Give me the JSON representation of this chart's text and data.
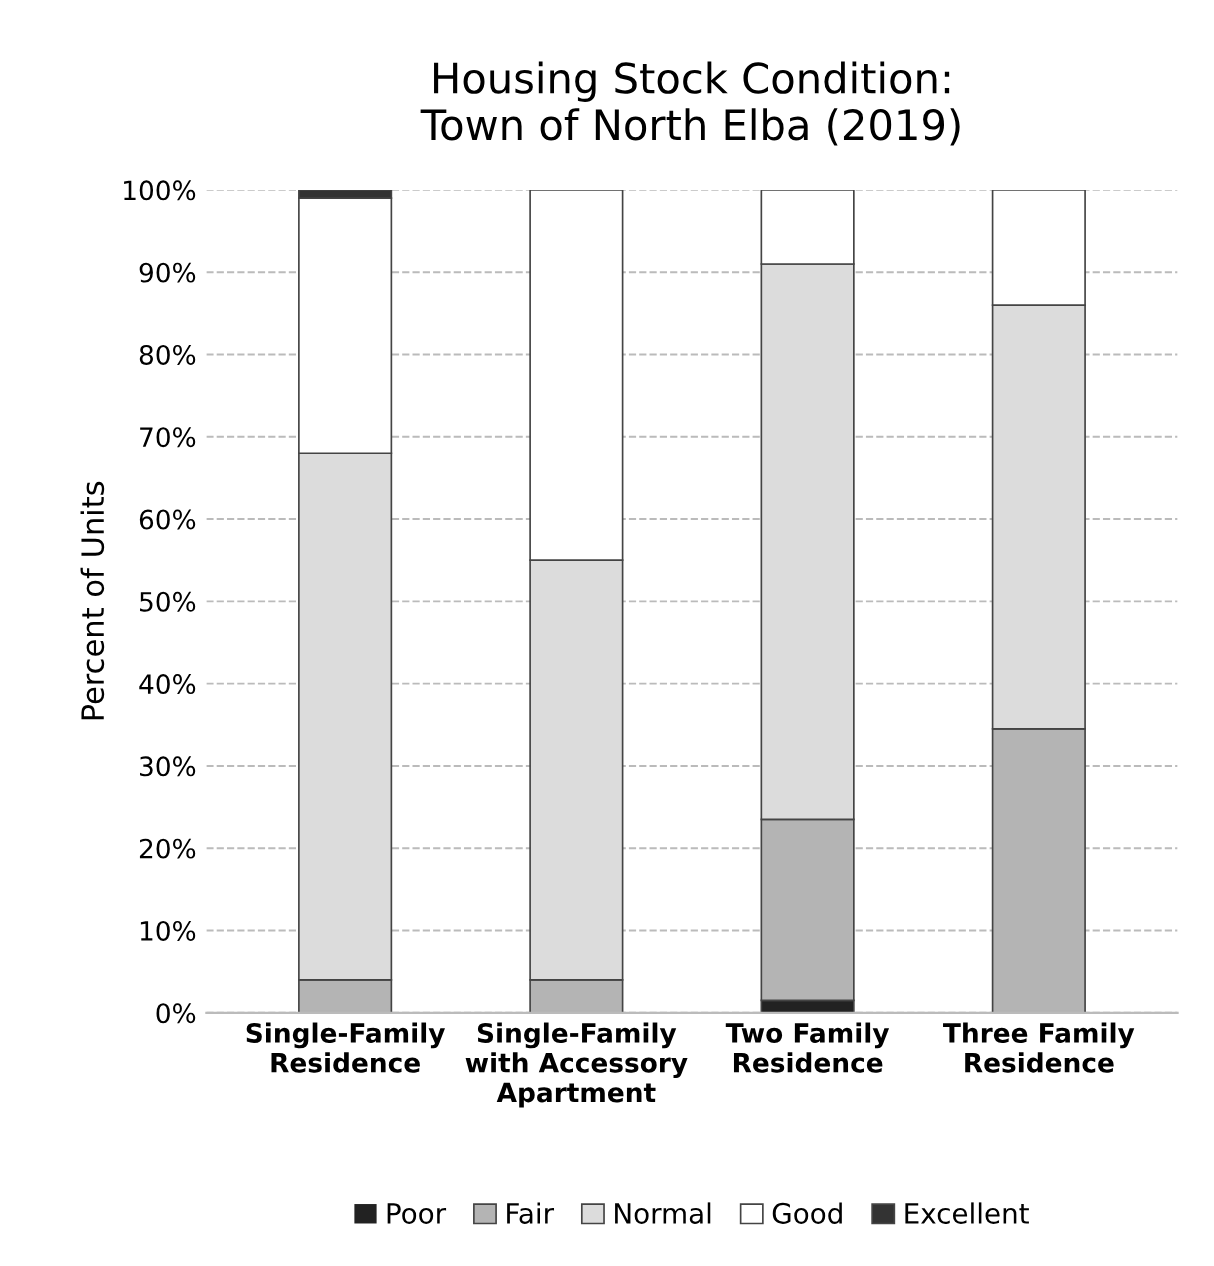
{
  "chart_data": {
    "type": "bar",
    "title": "Housing Stock Condition:\nTown of North Elba (2019)",
    "ylabel": "Percent of Units",
    "categories": [
      "Single-Family\nResidence",
      "Single-Family\nwith Accessory\nApartment",
      "Two Family\nResidence",
      "Three Family\nResidence"
    ],
    "stacked": true,
    "series": [
      {
        "name": "Poor",
        "color": "#222222",
        "values": [
          0,
          0,
          1.5,
          0
        ]
      },
      {
        "name": "Fair",
        "color": "#b4b4b4",
        "values": [
          4,
          4,
          22,
          34.5
        ]
      },
      {
        "name": "Normal",
        "color": "#dcdcdc",
        "values": [
          64,
          51,
          67.5,
          51.5
        ]
      },
      {
        "name": "Good",
        "color": "#ffffff",
        "values": [
          31,
          45,
          9,
          14
        ]
      },
      {
        "name": "Excellent",
        "color": "#333333",
        "values": [
          1,
          0,
          0,
          0
        ]
      }
    ],
    "ylim": [
      0,
      100
    ],
    "yticks": [
      {
        "value": 0,
        "label": "0%"
      },
      {
        "value": 10,
        "label": "10%"
      },
      {
        "value": 20,
        "label": "20%"
      },
      {
        "value": 30,
        "label": "30%"
      },
      {
        "value": 40,
        "label": "40%"
      },
      {
        "value": 50,
        "label": "50%"
      },
      {
        "value": 60,
        "label": "60%"
      },
      {
        "value": 70,
        "label": "70%"
      },
      {
        "value": 80,
        "label": "80%"
      },
      {
        "value": 90,
        "label": "90%"
      },
      {
        "value": 100,
        "label": "100%"
      }
    ],
    "grid": "y",
    "legend": "bottom"
  }
}
